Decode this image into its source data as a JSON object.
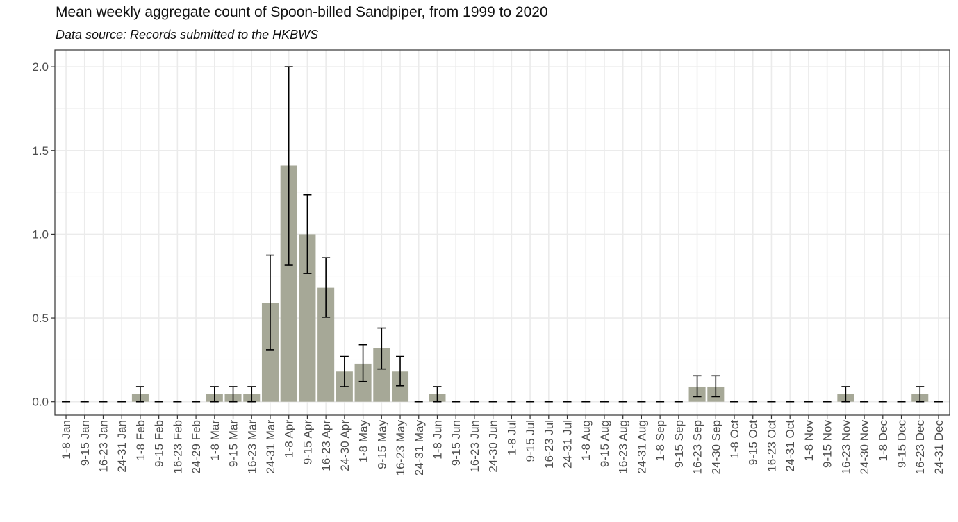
{
  "chart_data": {
    "type": "bar",
    "title": "Mean weekly aggregate count of Spoon-billed Sandpiper, from 1999 to 2020",
    "subtitle": "Data source: Records submitted to the HKBWS",
    "xlabel": "",
    "ylabel": "",
    "ylim": [
      -0.08,
      2.1
    ],
    "yticks": [
      0.0,
      0.5,
      1.0,
      1.5,
      2.0
    ],
    "ytick_labels": [
      "0.0",
      "0.5",
      "1.0",
      "1.5",
      "2.0"
    ],
    "grid": true,
    "bar_color": "#a6a897",
    "error_color": "#000000",
    "categories": [
      "1-8 Jan",
      "9-15 Jan",
      "16-23 Jan",
      "24-31 Jan",
      "1-8 Feb",
      "9-15 Feb",
      "16-23 Feb",
      "24-29 Feb",
      "1-8 Mar",
      "9-15 Mar",
      "16-23 Mar",
      "24-31 Mar",
      "1-8 Apr",
      "9-15 Apr",
      "16-23 Apr",
      "24-30 Apr",
      "1-8 May",
      "9-15 May",
      "16-23 May",
      "24-31 May",
      "1-8 Jun",
      "9-15 Jun",
      "16-23 Jun",
      "24-30 Jun",
      "1-8 Jul",
      "9-15 Jul",
      "16-23 Jul",
      "24-31 Jul",
      "1-8 Aug",
      "9-15 Aug",
      "16-23 Aug",
      "24-31 Aug",
      "1-8 Sep",
      "9-15 Sep",
      "16-23 Sep",
      "24-30 Sep",
      "1-8 Oct",
      "9-15 Oct",
      "16-23 Oct",
      "24-31 Oct",
      "1-8 Nov",
      "9-15 Nov",
      "16-23 Nov",
      "24-30 Nov",
      "1-8 Dec",
      "9-15 Dec",
      "16-23 Dec",
      "24-31 Dec"
    ],
    "values": [
      0,
      0,
      0,
      0,
      0.045,
      0,
      0,
      0,
      0.045,
      0.045,
      0.045,
      0.59,
      1.41,
      1.0,
      0.68,
      0.18,
      0.227,
      0.318,
      0.18,
      0,
      0.045,
      0,
      0,
      0,
      0,
      0,
      0,
      0,
      0,
      0,
      0,
      0,
      0,
      0,
      0.09,
      0.09,
      0,
      0,
      0,
      0,
      0,
      0,
      0.045,
      0,
      0,
      0,
      0.045,
      0
    ],
    "error_low": [
      0,
      0,
      0,
      0,
      0,
      0,
      0,
      0,
      0,
      0,
      0,
      0.31,
      0.815,
      0.765,
      0.505,
      0.09,
      0.12,
      0.195,
      0.095,
      0,
      0,
      0,
      0,
      0,
      0,
      0,
      0,
      0,
      0,
      0,
      0,
      0,
      0,
      0,
      0.03,
      0.03,
      0,
      0,
      0,
      0,
      0,
      0,
      0,
      0,
      0,
      0,
      0,
      0
    ],
    "error_high": [
      0,
      0,
      0,
      0,
      0.09,
      0,
      0,
      0,
      0.09,
      0.09,
      0.09,
      0.875,
      2.0,
      1.235,
      0.86,
      0.27,
      0.34,
      0.44,
      0.27,
      0,
      0.09,
      0,
      0,
      0,
      0,
      0,
      0,
      0,
      0,
      0,
      0,
      0,
      0,
      0,
      0.155,
      0.155,
      0,
      0,
      0,
      0,
      0,
      0,
      0.09,
      0,
      0,
      0,
      0.09,
      0
    ]
  }
}
